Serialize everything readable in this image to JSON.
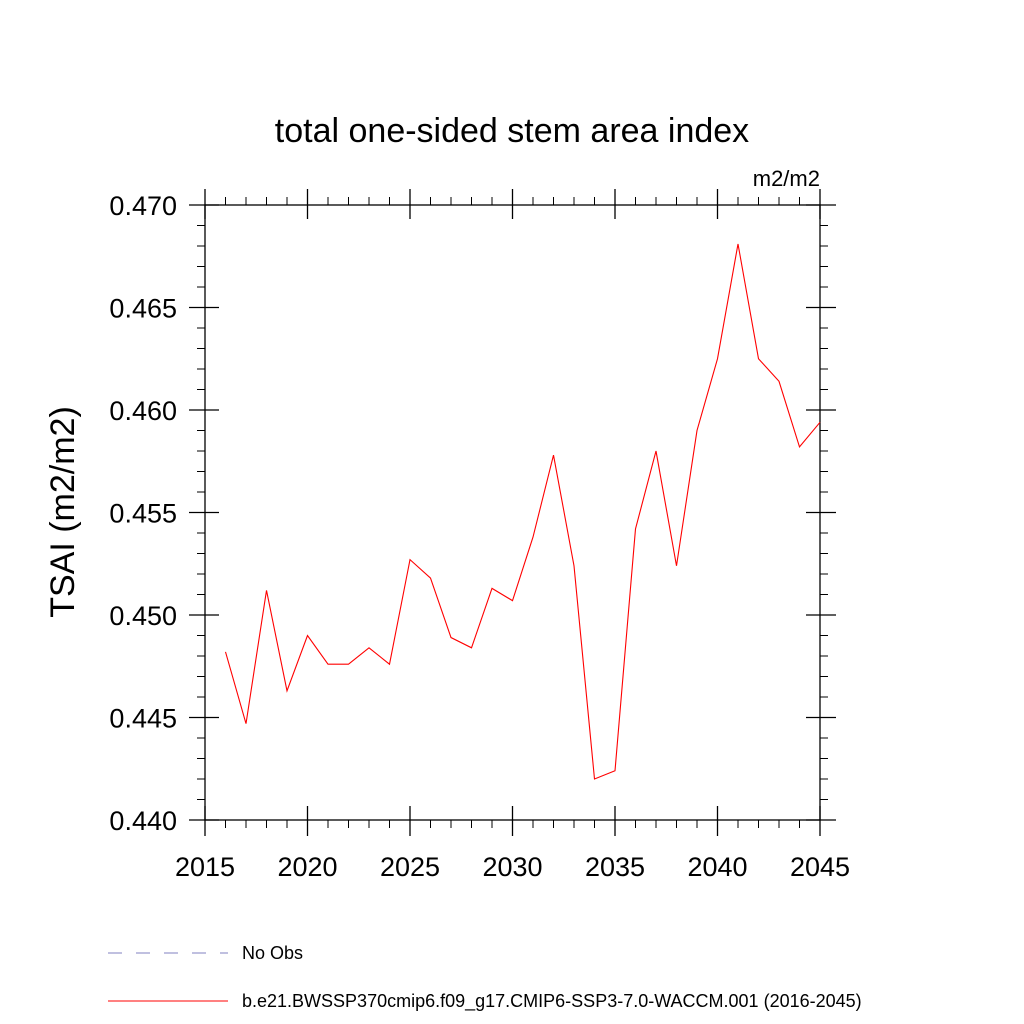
{
  "chart_data": {
    "type": "line",
    "title": "total one-sided stem area index",
    "units": "m2/m2",
    "ylabel": "TSAI  (m2/m2)",
    "xlabel": "",
    "xlim": [
      2015,
      2045
    ],
    "ylim": [
      0.44,
      0.47
    ],
    "x_ticks": [
      2015,
      2020,
      2025,
      2030,
      2035,
      2040,
      2045
    ],
    "x_tick_labels": [
      "2015",
      "2020",
      "2025",
      "2030",
      "2035",
      "2040",
      "2045"
    ],
    "y_ticks": [
      0.44,
      0.445,
      0.45,
      0.455,
      0.46,
      0.465,
      0.47
    ],
    "y_tick_labels": [
      "0.440",
      "0.445",
      "0.450",
      "0.455",
      "0.460",
      "0.465",
      "0.470"
    ],
    "series": [
      {
        "name": "b.e21.BWSSP370cmip6.f09_g17.CMIP6-SSP3-7.0-WACCM.001 (2016-2045)",
        "color": "#ff0000",
        "x": [
          2016,
          2017,
          2018,
          2019,
          2020,
          2021,
          2022,
          2023,
          2024,
          2025,
          2026,
          2027,
          2028,
          2029,
          2030,
          2031,
          2032,
          2033,
          2034,
          2035,
          2036,
          2037,
          2038,
          2039,
          2040,
          2041,
          2042,
          2043,
          2044,
          2045
        ],
        "values": [
          0.4482,
          0.4447,
          0.4512,
          0.4463,
          0.449,
          0.4476,
          0.4476,
          0.4484,
          0.4476,
          0.4527,
          0.4518,
          0.4489,
          0.4484,
          0.4513,
          0.4507,
          0.4538,
          0.4578,
          0.4524,
          0.442,
          0.4424,
          0.4542,
          0.458,
          0.4524,
          0.459,
          0.4625,
          0.4681,
          0.4625,
          0.4614,
          0.4582,
          0.4594
        ]
      }
    ],
    "legend": [
      {
        "label": "No Obs",
        "style": "dashed",
        "color": "#8080c0"
      },
      {
        "label": "b.e21.BWSSP370cmip6.f09_g17.CMIP6-SSP3-7.0-WACCM.001 (2016-2045)",
        "style": "solid",
        "color": "#ff0000"
      }
    ]
  }
}
